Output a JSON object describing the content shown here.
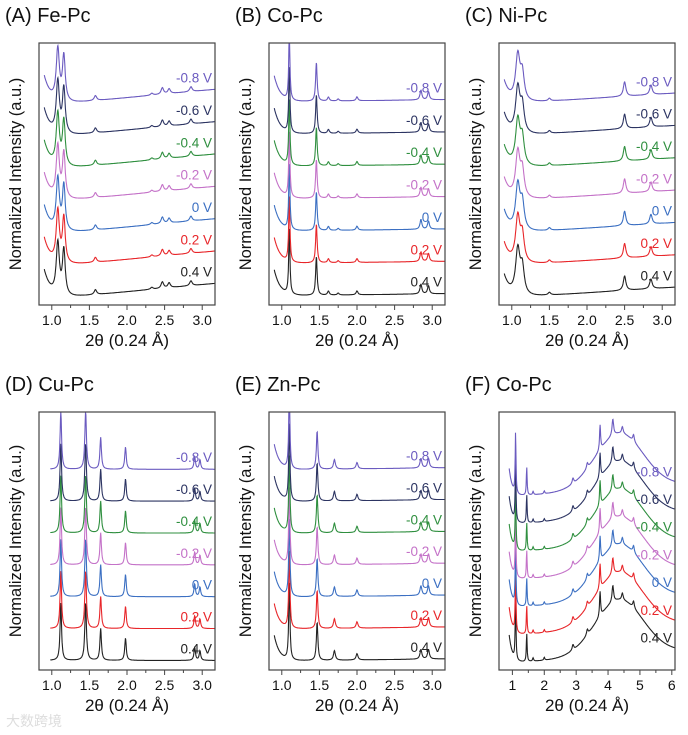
{
  "figure": {
    "watermark": "大数跨境"
  },
  "chart_data": [
    {
      "type": "line",
      "title": "(A) Fe-Pc",
      "xlabel": "2θ (0.24 Å)",
      "ylabel": "Normalized Intensity (a.u.)",
      "xlim": [
        0.83,
        3.17
      ],
      "ylim": [
        -0.3,
        7.8
      ],
      "xstart": 0.9,
      "xticks": [
        1.0,
        1.5,
        2.0,
        2.5,
        3.0
      ],
      "xtick_labels": [
        "1.0",
        "1.5",
        "2.0",
        "2.5",
        "3.0"
      ],
      "minor_step": 0.25,
      "peaks": [
        [
          1.08,
          1.6,
          0.025
        ],
        [
          1.16,
          1.4,
          0.022
        ],
        [
          1.58,
          0.15,
          0.02
        ],
        [
          2.47,
          0.2,
          0.02
        ],
        [
          2.56,
          0.15,
          0.02
        ],
        [
          2.85,
          0.15,
          0.02
        ],
        [
          2.33,
          0.06,
          0.02
        ]
      ],
      "baseline": {
        "amp": 0.9,
        "decay": 0.09,
        "slope": 0.22,
        "from": 1.5
      },
      "series": [
        {
          "name": "0.4 V",
          "color": "#222222",
          "offset": 0
        },
        {
          "name": "0.2 V",
          "color": "#e8262a",
          "offset": 1
        },
        {
          "name": "0 V",
          "color": "#3b6fc2",
          "offset": 2
        },
        {
          "name": "-0.2 V",
          "color": "#c472c8",
          "offset": 3
        },
        {
          "name": "-0.4 V",
          "color": "#2f8f3f",
          "offset": 4
        },
        {
          "name": "-0.6 V",
          "color": "#2c3462",
          "offset": 5
        },
        {
          "name": "-0.8 V",
          "color": "#6b5bc0",
          "offset": 6
        }
      ]
    },
    {
      "type": "line",
      "title": "(B) Co-Pc",
      "xlabel": "2θ (0.24 Å)",
      "ylabel": "Normalized Intensity (a.u.)",
      "xlim": [
        0.83,
        3.17
      ],
      "ylim": [
        -0.3,
        7.8
      ],
      "xstart": 0.9,
      "xticks": [
        1.0,
        1.5,
        2.0,
        2.5,
        3.0
      ],
      "xtick_labels": [
        "1.0",
        "1.5",
        "2.0",
        "2.5",
        "3.0"
      ],
      "minor_step": 0.25,
      "peaks": [
        [
          1.1,
          2.0,
          0.01
        ],
        [
          1.46,
          1.2,
          0.012
        ],
        [
          1.62,
          0.12,
          0.015
        ],
        [
          2.0,
          0.12,
          0.015
        ],
        [
          2.85,
          0.3,
          0.015
        ],
        [
          2.95,
          0.25,
          0.015
        ],
        [
          1.75,
          0.06,
          0.015
        ]
      ],
      "baseline": {
        "amp": 0.8,
        "decay": 0.08,
        "slope": 0.03,
        "from": 1.5
      },
      "series": [
        {
          "name": "0.4 V",
          "color": "#222222",
          "offset": 0
        },
        {
          "name": "0.2 V",
          "color": "#e8262a",
          "offset": 1
        },
        {
          "name": "0 V",
          "color": "#3b6fc2",
          "offset": 2
        },
        {
          "name": "-0.2 V",
          "color": "#c472c8",
          "offset": 3
        },
        {
          "name": "-0.4 V",
          "color": "#2f8f3f",
          "offset": 4
        },
        {
          "name": "-0.6 V",
          "color": "#2c3462",
          "offset": 5
        },
        {
          "name": "-0.8 V",
          "color": "#6b5bc0",
          "offset": 6
        }
      ]
    },
    {
      "type": "line",
      "title": "(C) Ni-Pc",
      "xlabel": "2θ (0.24 Å)",
      "ylabel": "Normalized Intensity (a.u.)",
      "xlim": [
        0.83,
        3.17
      ],
      "ylim": [
        -0.3,
        7.8
      ],
      "xstart": 0.9,
      "xticks": [
        1.0,
        1.5,
        2.0,
        2.5,
        3.0
      ],
      "xtick_labels": [
        "1.0",
        "1.5",
        "2.0",
        "2.5",
        "3.0"
      ],
      "minor_step": 0.25,
      "peaks": [
        [
          1.08,
          1.4,
          0.035
        ],
        [
          1.14,
          0.8,
          0.03
        ],
        [
          1.5,
          0.08,
          0.02
        ],
        [
          2.5,
          0.45,
          0.02
        ],
        [
          2.85,
          0.3,
          0.02
        ]
      ],
      "baseline": {
        "amp": 0.7,
        "decay": 0.08,
        "slope": 0.15,
        "from": 1.5
      },
      "series": [
        {
          "name": "0.4 V",
          "color": "#222222",
          "offset": 0
        },
        {
          "name": "0.2 V",
          "color": "#e8262a",
          "offset": 1
        },
        {
          "name": "0 V",
          "color": "#3b6fc2",
          "offset": 2
        },
        {
          "name": "-0.2 V",
          "color": "#c472c8",
          "offset": 3
        },
        {
          "name": "-0.4 V",
          "color": "#2f8f3f",
          "offset": 4
        },
        {
          "name": "-0.6 V",
          "color": "#2c3462",
          "offset": 5
        },
        {
          "name": "-0.8 V",
          "color": "#6b5bc0",
          "offset": 6
        }
      ]
    },
    {
      "type": "line",
      "title": "(D) Cu-Pc",
      "xlabel": "2θ (0.24 Å)",
      "ylabel": "Normalized Intensity (a.u.)",
      "xlim": [
        0.83,
        3.17
      ],
      "ylim": [
        -0.3,
        7.8
      ],
      "xstart": 0.98,
      "xticks": [
        1.0,
        1.5,
        2.0,
        2.5,
        3.0
      ],
      "xtick_labels": [
        "1.0",
        "1.5",
        "2.0",
        "2.5",
        "3.0"
      ],
      "minor_step": 0.25,
      "peaks": [
        [
          1.12,
          1.8,
          0.012
        ],
        [
          1.45,
          1.8,
          0.013
        ],
        [
          1.65,
          1.0,
          0.012
        ],
        [
          1.98,
          0.7,
          0.012
        ],
        [
          2.9,
          0.4,
          0.012
        ],
        [
          2.97,
          0.3,
          0.012
        ]
      ],
      "baseline": {
        "amp": 0.0,
        "decay": 0.08,
        "slope": 0.0,
        "from": 1.5
      },
      "series": [
        {
          "name": "0.4 V",
          "color": "#222222",
          "offset": 0
        },
        {
          "name": "0.2 V",
          "color": "#e8262a",
          "offset": 1
        },
        {
          "name": "0 V",
          "color": "#3b6fc2",
          "offset": 2
        },
        {
          "name": "-0.2 V",
          "color": "#c472c8",
          "offset": 3
        },
        {
          "name": "-0.4 V",
          "color": "#2f8f3f",
          "offset": 4
        },
        {
          "name": "-0.6 V",
          "color": "#2c3462",
          "offset": 5
        },
        {
          "name": "-0.8 V",
          "color": "#6b5bc0",
          "offset": 6
        }
      ]
    },
    {
      "type": "line",
      "title": "(E) Zn-Pc",
      "xlabel": "2θ (0.24 Å)",
      "ylabel": "Normalized Intensity (a.u.)",
      "xlim": [
        0.83,
        3.17
      ],
      "ylim": [
        -0.3,
        7.8
      ],
      "xstart": 0.9,
      "xticks": [
        1.0,
        1.5,
        2.0,
        2.5,
        3.0
      ],
      "xtick_labels": [
        "1.0",
        "1.5",
        "2.0",
        "2.5",
        "3.0"
      ],
      "minor_step": 0.25,
      "peaks": [
        [
          1.1,
          2.4,
          0.01
        ],
        [
          1.47,
          1.2,
          0.012
        ],
        [
          1.7,
          0.3,
          0.015
        ],
        [
          2.0,
          0.2,
          0.015
        ],
        [
          2.85,
          0.3,
          0.015
        ],
        [
          2.95,
          0.3,
          0.015
        ]
      ],
      "baseline": {
        "amp": 0.8,
        "decay": 0.07,
        "slope": 0.03,
        "from": 1.5
      },
      "series": [
        {
          "name": "0.4 V",
          "color": "#222222",
          "offset": 0
        },
        {
          "name": "0.2 V",
          "color": "#e8262a",
          "offset": 1
        },
        {
          "name": "0 V",
          "color": "#3b6fc2",
          "offset": 2
        },
        {
          "name": "-0.2 V",
          "color": "#c472c8",
          "offset": 3
        },
        {
          "name": "-0.4 V",
          "color": "#2f8f3f",
          "offset": 4
        },
        {
          "name": "-0.6 V",
          "color": "#2c3462",
          "offset": 5
        },
        {
          "name": "-0.8 V",
          "color": "#6b5bc0",
          "offset": 6
        }
      ]
    },
    {
      "type": "line",
      "title": "(F) Co-Pc",
      "xlabel": "2θ (0.24 Å)",
      "ylabel": "Normalized Intensity (a.u.)",
      "xlim": [
        0.58,
        6.1
      ],
      "ylim": [
        -0.3,
        9.0
      ],
      "xstart": 0.9,
      "xticks": [
        1,
        2,
        3,
        4,
        5,
        6
      ],
      "xtick_labels": [
        "1",
        "2",
        "3",
        "4",
        "5",
        "6"
      ],
      "minor_step": 0.5,
      "peaks": [
        [
          1.1,
          2.2,
          0.015
        ],
        [
          1.45,
          1.0,
          0.015
        ],
        [
          1.65,
          0.12,
          0.02
        ],
        [
          2.0,
          0.1,
          0.02
        ],
        [
          2.9,
          0.2,
          0.03
        ],
        [
          3.35,
          0.2,
          0.03
        ],
        [
          3.75,
          0.9,
          0.02
        ],
        [
          4.15,
          0.6,
          0.03
        ],
        [
          4.45,
          0.25,
          0.03
        ],
        [
          4.8,
          0.25,
          0.03
        ]
      ],
      "baseline": {
        "amp": 1.0,
        "decay": 0.1,
        "slope": 0.08,
        "from": 1.5,
        "hump": [
          4.35,
          2.0,
          0.75
        ]
      },
      "series": [
        {
          "name": "0.4 V",
          "color": "#222222",
          "offset": 0
        },
        {
          "name": "0.2 V",
          "color": "#e8262a",
          "offset": 1
        },
        {
          "name": "0 V",
          "color": "#3b6fc2",
          "offset": 2
        },
        {
          "name": "-0.2 V",
          "color": "#c472c8",
          "offset": 3
        },
        {
          "name": "-0.4 V",
          "color": "#2f8f3f",
          "offset": 4
        },
        {
          "name": "-0.6 V",
          "color": "#2c3462",
          "offset": 5
        },
        {
          "name": "-0.8 V",
          "color": "#6b5bc0",
          "offset": 6
        }
      ]
    }
  ]
}
